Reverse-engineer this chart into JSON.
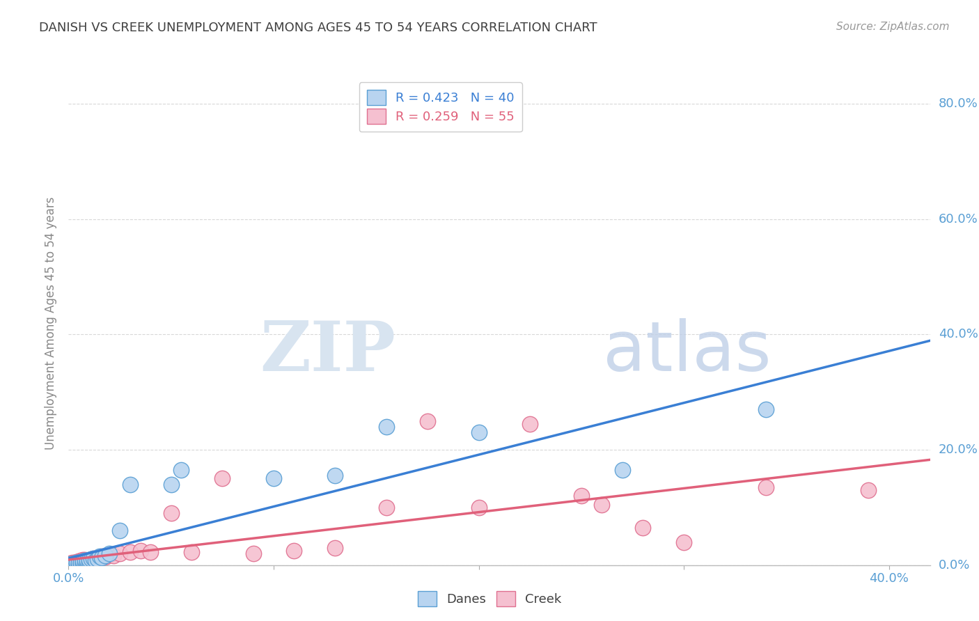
{
  "title": "DANISH VS CREEK UNEMPLOYMENT AMONG AGES 45 TO 54 YEARS CORRELATION CHART",
  "source": "Source: ZipAtlas.com",
  "ylabel": "Unemployment Among Ages 45 to 54 years",
  "xlim": [
    0.0,
    0.42
  ],
  "ylim": [
    0.0,
    0.84
  ],
  "xticks": [
    0.0,
    0.1,
    0.2,
    0.3,
    0.4
  ],
  "yticks": [
    0.0,
    0.2,
    0.4,
    0.6,
    0.8
  ],
  "xtick_labels_show": [
    "0.0%",
    "",
    "",
    "",
    "40.0%"
  ],
  "ytick_labels_right": [
    "0.0%",
    "20.0%",
    "40.0%",
    "60.0%",
    "80.0%"
  ],
  "danes_color": "#b8d4f0",
  "danes_edge_color": "#5a9fd4",
  "creek_color": "#f5c0d0",
  "creek_edge_color": "#e07090",
  "danes_line_color": "#3a7fd4",
  "creek_line_color": "#e0607a",
  "danes_R": 0.423,
  "danes_N": 40,
  "creek_R": 0.259,
  "creek_N": 55,
  "background_color": "#ffffff",
  "grid_color": "#d8d8d8",
  "title_color": "#404040",
  "axis_label_color": "#5a9fd4",
  "watermark_zip": "ZIP",
  "watermark_atlas": "atlas",
  "danes_x": [
    0.001,
    0.002,
    0.003,
    0.003,
    0.004,
    0.004,
    0.004,
    0.005,
    0.005,
    0.005,
    0.006,
    0.006,
    0.006,
    0.007,
    0.007,
    0.007,
    0.008,
    0.008,
    0.009,
    0.009,
    0.01,
    0.01,
    0.011,
    0.012,
    0.013,
    0.014,
    0.015,
    0.016,
    0.018,
    0.02,
    0.025,
    0.03,
    0.05,
    0.055,
    0.1,
    0.13,
    0.155,
    0.2,
    0.27,
    0.34
  ],
  "danes_y": [
    0.002,
    0.001,
    0.003,
    0.001,
    0.002,
    0.003,
    0.004,
    0.001,
    0.002,
    0.004,
    0.002,
    0.004,
    0.005,
    0.003,
    0.005,
    0.007,
    0.004,
    0.008,
    0.005,
    0.008,
    0.006,
    0.009,
    0.01,
    0.012,
    0.008,
    0.01,
    0.015,
    0.013,
    0.016,
    0.02,
    0.06,
    0.14,
    0.14,
    0.165,
    0.15,
    0.155,
    0.24,
    0.23,
    0.165,
    0.27
  ],
  "creek_x": [
    0.001,
    0.001,
    0.002,
    0.002,
    0.003,
    0.003,
    0.003,
    0.004,
    0.004,
    0.004,
    0.005,
    0.005,
    0.005,
    0.006,
    0.006,
    0.006,
    0.007,
    0.007,
    0.007,
    0.008,
    0.008,
    0.008,
    0.009,
    0.009,
    0.01,
    0.01,
    0.011,
    0.012,
    0.013,
    0.014,
    0.015,
    0.016,
    0.018,
    0.02,
    0.022,
    0.025,
    0.03,
    0.035,
    0.04,
    0.05,
    0.06,
    0.075,
    0.09,
    0.11,
    0.13,
    0.155,
    0.175,
    0.2,
    0.225,
    0.25,
    0.26,
    0.28,
    0.3,
    0.34,
    0.39
  ],
  "creek_y": [
    0.001,
    0.003,
    0.002,
    0.004,
    0.001,
    0.003,
    0.005,
    0.002,
    0.004,
    0.006,
    0.002,
    0.004,
    0.007,
    0.003,
    0.005,
    0.008,
    0.004,
    0.006,
    0.009,
    0.003,
    0.006,
    0.009,
    0.005,
    0.008,
    0.004,
    0.007,
    0.01,
    0.012,
    0.009,
    0.011,
    0.013,
    0.015,
    0.014,
    0.018,
    0.017,
    0.02,
    0.022,
    0.025,
    0.023,
    0.09,
    0.022,
    0.15,
    0.02,
    0.025,
    0.03,
    0.1,
    0.25,
    0.1,
    0.245,
    0.12,
    0.105,
    0.065,
    0.04,
    0.135,
    0.13
  ]
}
